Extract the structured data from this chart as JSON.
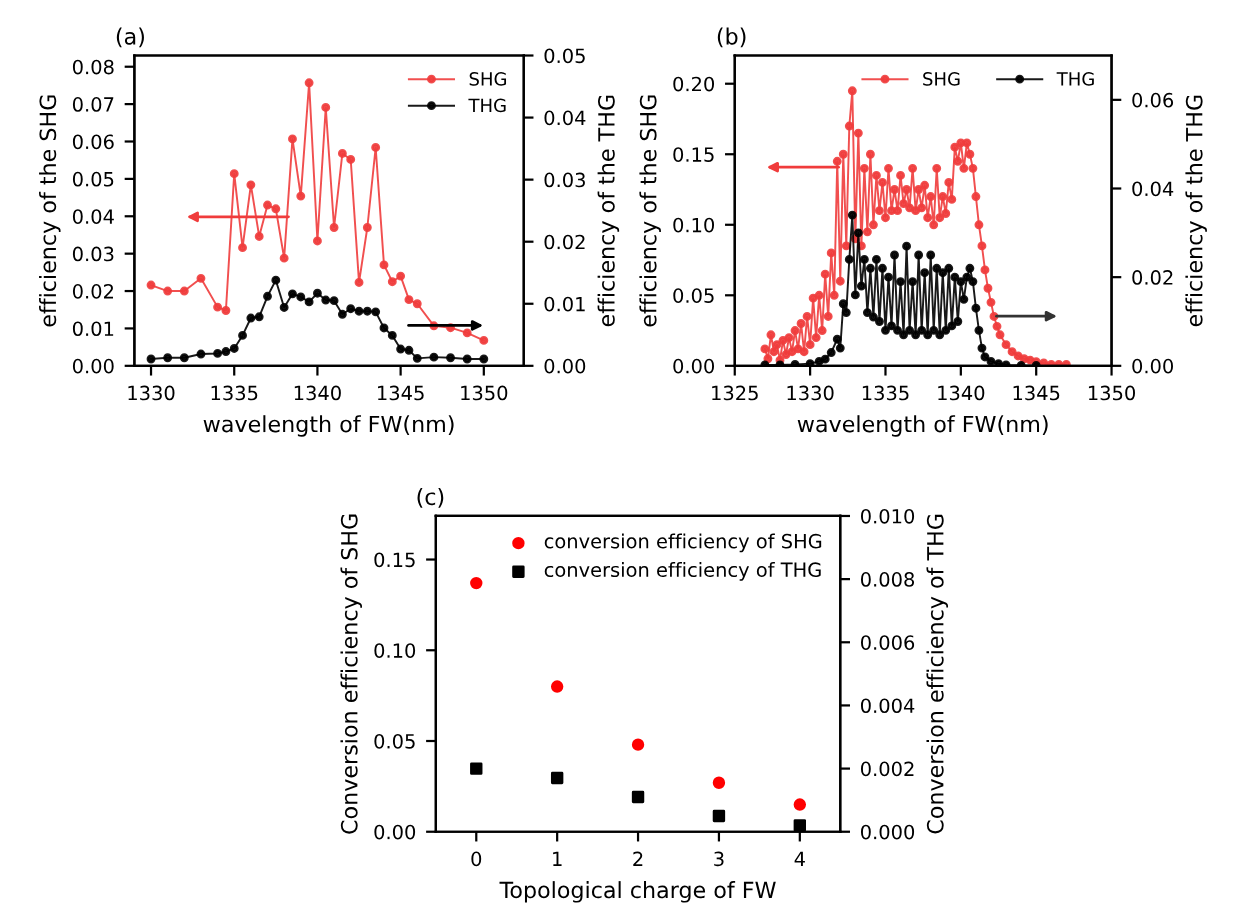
{
  "chart_data": [
    {
      "type": "line",
      "title": "(a)",
      "xlabel": "wavelength of FW(nm)",
      "ylabel": "efficiency of the SHG",
      "y2label": "efficiency of the THG",
      "legend": "top right",
      "marker": "circle",
      "xlim": [
        1329,
        1352.4
      ],
      "ylim": [
        0,
        0.083
      ],
      "y2lim": [
        0,
        0.05
      ],
      "xticks": [
        1330,
        1335,
        1340,
        1345,
        1350
      ],
      "yticks": [
        {
          "value": 0,
          "label": "0.00"
        },
        {
          "value": 0.01,
          "label": "0.01"
        },
        {
          "value": 0.02,
          "label": "0.02"
        },
        {
          "value": 0.03,
          "label": "0.03"
        },
        {
          "value": 0.04,
          "label": "0.04"
        },
        {
          "value": 0.05,
          "label": "0.05"
        },
        {
          "value": 0.06,
          "label": "0.06"
        },
        {
          "value": 0.07,
          "label": "0.07"
        },
        {
          "value": 0.08,
          "label": "0.08"
        }
      ],
      "y2ticks": [
        {
          "value": 0,
          "label": "0.00"
        },
        {
          "value": 0.01,
          "label": "0.01"
        },
        {
          "value": 0.02,
          "label": "0.02"
        },
        {
          "value": 0.03,
          "label": "0.03"
        },
        {
          "value": 0.04,
          "label": "0.04"
        },
        {
          "value": 0.05,
          "label": "0.05"
        }
      ],
      "series": [
        {
          "name": "SHG",
          "color": "#f03c3c",
          "x": [
            1330,
            1331,
            1332,
            1333,
            1334,
            1334.5,
            1335,
            1335.5,
            1336,
            1336.5,
            1337,
            1337.5,
            1338,
            1338.5,
            1339,
            1339.5,
            1340,
            1340.5,
            1341,
            1341.5,
            1342,
            1342.5,
            1343,
            1343.5,
            1344,
            1344.5,
            1345,
            1345.5,
            1346,
            1347,
            1348,
            1349,
            1350
          ],
          "values": [
            0.0216,
            0.02,
            0.02,
            0.0234,
            0.0157,
            0.0148,
            0.0514,
            0.0316,
            0.0484,
            0.0346,
            0.043,
            0.042,
            0.0288,
            0.0607,
            0.0454,
            0.0757,
            0.0334,
            0.0691,
            0.037,
            0.0568,
            0.0552,
            0.0223,
            0.037,
            0.0584,
            0.027,
            0.0225,
            0.024,
            0.0177,
            0.0166,
            0.0107,
            0.0102,
            0.0088,
            0.0068
          ]
        },
        {
          "name": "THG",
          "color": "#000000",
          "axis": "y2",
          "x": [
            1330,
            1331,
            1332,
            1333,
            1334,
            1334.5,
            1335,
            1335.5,
            1336,
            1336.5,
            1337,
            1337.5,
            1338,
            1338.5,
            1339,
            1339.5,
            1340,
            1340.5,
            1341,
            1341.5,
            1342,
            1342.5,
            1343,
            1343.5,
            1344,
            1344.5,
            1345,
            1345.5,
            1346,
            1347,
            1348,
            1349,
            1350
          ],
          "values": [
            0.0011,
            0.0013,
            0.0013,
            0.0019,
            0.002,
            0.0023,
            0.0028,
            0.0049,
            0.0077,
            0.0079,
            0.0112,
            0.0138,
            0.0094,
            0.0116,
            0.0111,
            0.0103,
            0.0117,
            0.0106,
            0.0105,
            0.0083,
            0.0092,
            0.0088,
            0.0088,
            0.0087,
            0.0061,
            0.0049,
            0.0027,
            0.0025,
            0.0012,
            0.0014,
            0.0013,
            0.0011,
            0.0011
          ]
        }
      ]
    },
    {
      "type": "line",
      "title": "(b)",
      "xlabel": "wavelength of FW(nm)",
      "ylabel": "efficiency of the SHG",
      "y2label": "efficiency of the THG",
      "legend": "top right",
      "marker": "circle",
      "xlim": [
        1325,
        1350
      ],
      "ylim": [
        0,
        0.22
      ],
      "y2lim": [
        0,
        0.07
      ],
      "xticks": [
        1325,
        1330,
        1335,
        1340,
        1345,
        1350
      ],
      "yticks": [
        {
          "value": 0,
          "label": "0.00"
        },
        {
          "value": 0.05,
          "label": "0.05"
        },
        {
          "value": 0.1,
          "label": "0.10"
        },
        {
          "value": 0.15,
          "label": "0.15"
        },
        {
          "value": 0.2,
          "label": "0.20"
        }
      ],
      "y2ticks": [
        {
          "value": 0,
          "label": "0.00"
        },
        {
          "value": 0.02,
          "label": "0.02"
        },
        {
          "value": 0.04,
          "label": "0.04"
        },
        {
          "value": 0.06,
          "label": "0.06"
        }
      ],
      "series": [
        {
          "name": "SHG",
          "color": "#f03c3c",
          "x": [
            1327.0,
            1327.2,
            1327.4,
            1327.6,
            1327.8,
            1328.0,
            1328.2,
            1328.4,
            1328.6,
            1328.8,
            1329.0,
            1329.2,
            1329.4,
            1329.6,
            1329.8,
            1330.0,
            1330.2,
            1330.4,
            1330.6,
            1330.8,
            1331.0,
            1331.2,
            1331.4,
            1331.6,
            1331.8,
            1332.0,
            1332.2,
            1332.4,
            1332.6,
            1332.8,
            1333.0,
            1333.2,
            1333.4,
            1333.6,
            1333.8,
            1334.0,
            1334.2,
            1334.4,
            1334.6,
            1334.8,
            1335.0,
            1335.2,
            1335.4,
            1335.6,
            1335.8,
            1336.0,
            1336.2,
            1336.4,
            1336.6,
            1336.8,
            1337.0,
            1337.2,
            1337.4,
            1337.6,
            1337.8,
            1338.0,
            1338.2,
            1338.4,
            1338.6,
            1338.8,
            1339.0,
            1339.2,
            1339.4,
            1339.6,
            1339.8,
            1340.0,
            1340.2,
            1340.4,
            1340.6,
            1340.8,
            1341.0,
            1341.2,
            1341.4,
            1341.6,
            1341.8,
            1342.0,
            1342.2,
            1342.4,
            1342.6,
            1343.0,
            1343.4,
            1343.8,
            1344.2,
            1344.6,
            1345.0,
            1345.5,
            1346.0,
            1346.5,
            1347.0
          ],
          "values": [
            0.012,
            0.005,
            0.022,
            0.01,
            0.015,
            0.004,
            0.018,
            0.008,
            0.02,
            0.01,
            0.025,
            0.012,
            0.03,
            0.01,
            0.035,
            0.015,
            0.048,
            0.02,
            0.05,
            0.025,
            0.065,
            0.035,
            0.08,
            0.05,
            0.145,
            0.06,
            0.15,
            0.085,
            0.17,
            0.195,
            0.09,
            0.165,
            0.085,
            0.14,
            0.095,
            0.15,
            0.1,
            0.135,
            0.11,
            0.13,
            0.105,
            0.14,
            0.11,
            0.125,
            0.11,
            0.135,
            0.115,
            0.125,
            0.112,
            0.14,
            0.11,
            0.125,
            0.112,
            0.128,
            0.105,
            0.12,
            0.1,
            0.14,
            0.105,
            0.12,
            0.108,
            0.13,
            0.118,
            0.155,
            0.145,
            0.158,
            0.14,
            0.158,
            0.15,
            0.14,
            0.12,
            0.1,
            0.085,
            0.068,
            0.055,
            0.045,
            0.035,
            0.028,
            0.022,
            0.015,
            0.01,
            0.007,
            0.005,
            0.004,
            0.003,
            0.002,
            0.001,
            0.001,
            0.001
          ]
        },
        {
          "name": "THG",
          "color": "#000000",
          "axis": "y2",
          "x": [
            1327,
            1328,
            1329,
            1330,
            1330.6,
            1331.0,
            1331.4,
            1331.8,
            1332.0,
            1332.2,
            1332.4,
            1332.6,
            1332.8,
            1333.0,
            1333.2,
            1333.4,
            1333.6,
            1333.8,
            1334.0,
            1334.2,
            1334.4,
            1334.6,
            1334.8,
            1335.0,
            1335.2,
            1335.4,
            1335.6,
            1335.8,
            1336.0,
            1336.2,
            1336.4,
            1336.6,
            1336.8,
            1337.0,
            1337.2,
            1337.4,
            1337.6,
            1337.8,
            1338.0,
            1338.2,
            1338.4,
            1338.6,
            1338.8,
            1339.0,
            1339.2,
            1339.4,
            1339.6,
            1339.8,
            1340.0,
            1340.2,
            1340.4,
            1340.6,
            1340.8,
            1341.0,
            1341.2,
            1341.4,
            1341.6,
            1342,
            1342.5,
            1343,
            1344,
            1345
          ],
          "values": [
            0.0002,
            0.0002,
            0.0003,
            0.0005,
            0.001,
            0.0015,
            0.003,
            0.006,
            0.004,
            0.014,
            0.012,
            0.024,
            0.034,
            0.016,
            0.03,
            0.018,
            0.024,
            0.012,
            0.022,
            0.011,
            0.024,
            0.01,
            0.022,
            0.008,
            0.02,
            0.009,
            0.025,
            0.008,
            0.019,
            0.007,
            0.027,
            0.008,
            0.019,
            0.007,
            0.025,
            0.008,
            0.021,
            0.007,
            0.025,
            0.008,
            0.022,
            0.007,
            0.021,
            0.008,
            0.022,
            0.009,
            0.02,
            0.01,
            0.019,
            0.015,
            0.02,
            0.022,
            0.019,
            0.013,
            0.008,
            0.004,
            0.002,
            0.001,
            0.0005,
            0.0002,
            0.0001,
            0.0001
          ]
        }
      ]
    },
    {
      "type": "scatter",
      "title": "(c)",
      "xlabel": "Topological charge of FW",
      "ylabel": "Conversion efficiency of SHG",
      "y2label": "Conversion efficiency of THG",
      "legend": "top right",
      "marker": "square",
      "xlim": [
        -0.5,
        4.5
      ],
      "ylim": [
        0,
        0.174
      ],
      "y2lim": [
        0,
        0.01
      ],
      "xticks": [
        0,
        1,
        2,
        3,
        4
      ],
      "yticks": [
        {
          "value": 0,
          "label": "0.00"
        },
        {
          "value": 0.05,
          "label": "0.05"
        },
        {
          "value": 0.1,
          "label": "0.10"
        },
        {
          "value": 0.15,
          "label": "0.15"
        }
      ],
      "y2ticks": [
        {
          "value": 0,
          "label": "0.000"
        },
        {
          "value": 0.002,
          "label": "0.002"
        },
        {
          "value": 0.004,
          "label": "0.004"
        },
        {
          "value": 0.006,
          "label": "0.006"
        },
        {
          "value": 0.008,
          "label": "0.008"
        },
        {
          "value": 0.01,
          "label": "0.010"
        }
      ],
      "series": [
        {
          "name": "conversion efficiency of SHG",
          "color": "#ff0000",
          "marker": "circle",
          "x": [
            0,
            1,
            2,
            3,
            4
          ],
          "values": [
            0.137,
            0.08,
            0.048,
            0.027,
            0.015
          ]
        },
        {
          "name": "conversion efficiency of THG",
          "color": "#000000",
          "marker": "square",
          "axis": "y2",
          "x": [
            0,
            1,
            2,
            3,
            4
          ],
          "values": [
            0.002,
            0.0017,
            0.0011,
            0.0005,
            0.0002
          ]
        }
      ]
    }
  ]
}
